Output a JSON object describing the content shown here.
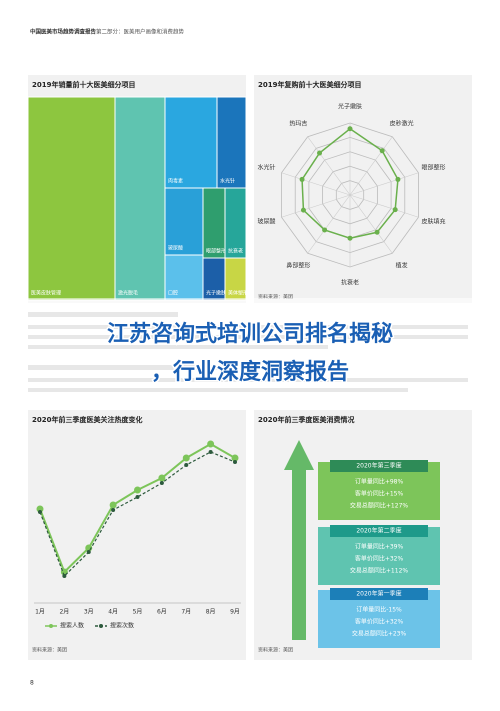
{
  "header": {
    "report": "中国医美市场趋势调査报告",
    "section": "第二部分：医美用户画像和消费趋势"
  },
  "treemap": {
    "title": "2019年销量前十大医美细分项目",
    "labels": [
      "医美皮肤管理",
      "激光脱毛",
      "肉毒素",
      "水光针",
      "玻尿酸",
      "口腔",
      "眼部整形",
      "抗衰老",
      "光子嫩肤",
      "美体塑形"
    ]
  },
  "radar": {
    "title": "2019年复购前十大医美细分项目",
    "axes": [
      "光子嫩肤",
      "皮秒激光",
      "眼部整形",
      "皮肤填充",
      "植发",
      "抗衰老",
      "鼻部整形",
      "玻尿酸",
      "水光针",
      "热玛吉"
    ],
    "values": [
      4.6,
      3.8,
      3.5,
      3.3,
      3.2,
      3.0,
      3.0,
      3.4,
      3.5,
      3.6
    ],
    "rlim": [
      0,
      5
    ],
    "rticks": [
      1,
      2,
      3,
      4,
      5
    ],
    "color": "#6ab04c",
    "source": "资料来源：美团"
  },
  "line_chart": {
    "title": "2020年前三季度医美关注热度变化",
    "categories": [
      "1月",
      "2月",
      "3月",
      "4月",
      "5月",
      "6月",
      "7月",
      "8月",
      "9月"
    ],
    "series": [
      {
        "name": "搜索人数",
        "color": "#7dc55a",
        "values": [
          91,
          28,
          52,
          95,
          110,
          122,
          142,
          156,
          142
        ]
      },
      {
        "name": "搜索次数",
        "color": "#2d5a3d",
        "values": [
          88,
          24,
          48,
          90,
          103,
          117,
          135,
          148,
          138
        ]
      }
    ],
    "ylim": [
      0,
      170
    ],
    "source": "资料来源：美团"
  },
  "consumption": {
    "title": "2020年前三季度医美消费情况",
    "quarters": [
      {
        "name": "2020年第三季度",
        "lines": [
          "订单量同比+98%",
          "客单价同比+15%",
          "交易总额同比+127%"
        ]
      },
      {
        "name": "2020年第二季度",
        "lines": [
          "订单量同比+39%",
          "客单价同比+32%",
          "交易总额同比+112%"
        ]
      },
      {
        "name": "2020年第一季度",
        "lines": [
          "订单量同比-15%",
          "客单价同比+32%",
          "交易总额同比+23%"
        ]
      }
    ],
    "source": "资料来源：美团"
  },
  "overlay": {
    "line1": "江苏咨询式培训公司排名揭秘",
    "line2": "，行业深度洞察报告"
  },
  "page_number": "8"
}
